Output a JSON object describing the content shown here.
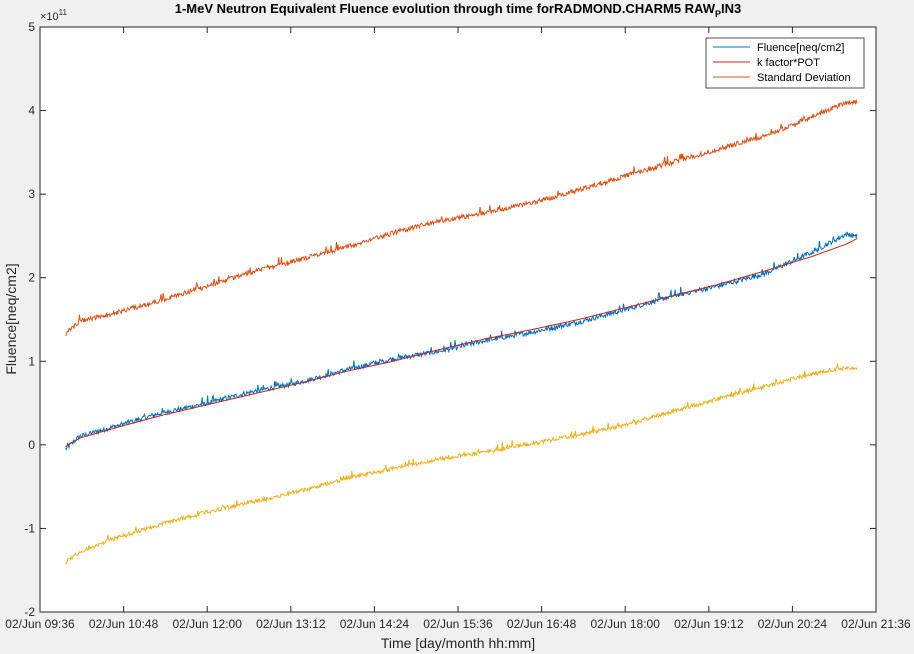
{
  "chart_data": {
    "type": "line",
    "title_main": "1-MeV Neutron Equivalent Fluence evolution through time forRADMOND.CHARM5 RAW",
    "title_sub": "P",
    "title_tail": "IN3",
    "xlabel": "Time [day/month hh:mm]",
    "ylabel": "Fluence[neq/cm2]",
    "y_exponent_base": "×10",
    "y_exponent": "11",
    "xlim_minutes": [
      576,
      1296
    ],
    "x_ticks": [
      {
        "label": "02/Jun 09:36",
        "minutes": 576
      },
      {
        "label": "02/Jun 10:48",
        "minutes": 648
      },
      {
        "label": "02/Jun 12:00",
        "minutes": 720
      },
      {
        "label": "02/Jun 13:12",
        "minutes": 792
      },
      {
        "label": "02/Jun 14:24",
        "minutes": 864
      },
      {
        "label": "02/Jun 15:36",
        "minutes": 936
      },
      {
        "label": "02/Jun 16:48",
        "minutes": 1008
      },
      {
        "label": "02/Jun 18:00",
        "minutes": 1080
      },
      {
        "label": "02/Jun 19:12",
        "minutes": 1152
      },
      {
        "label": "02/Jun 20:24",
        "minutes": 1224
      },
      {
        "label": "02/Jun 21:36",
        "minutes": 1296
      }
    ],
    "ylim": [
      -2,
      5
    ],
    "y_ticks": [
      -2,
      -1,
      0,
      1,
      2,
      3,
      4,
      5
    ],
    "grid": false,
    "legend_position": "top-right",
    "x_minutes_of_day": [
      598,
      610,
      640,
      680,
      720,
      760,
      800,
      840,
      880,
      920,
      960,
      1000,
      1040,
      1080,
      1120,
      1160,
      1200,
      1240,
      1270,
      1280
    ],
    "series": [
      {
        "name": "Fluence[neq/cm2]",
        "color": "#0072bd",
        "values": [
          -0.05,
          0.1,
          0.22,
          0.38,
          0.5,
          0.64,
          0.75,
          0.9,
          1.03,
          1.12,
          1.25,
          1.35,
          1.47,
          1.62,
          1.78,
          1.9,
          2.05,
          2.3,
          2.52,
          2.5
        ]
      },
      {
        "name": "k factor*POT",
        "color": "#d21f1f",
        "values": [
          -0.02,
          0.08,
          0.2,
          0.35,
          0.48,
          0.61,
          0.74,
          0.88,
          1.0,
          1.14,
          1.27,
          1.38,
          1.5,
          1.64,
          1.78,
          1.92,
          2.08,
          2.25,
          2.4,
          2.47
        ]
      },
      {
        "name": "Standard Deviation",
        "color": "#d95319",
        "values": [
          1.33,
          1.48,
          1.58,
          1.73,
          1.9,
          2.08,
          2.22,
          2.37,
          2.54,
          2.68,
          2.78,
          2.9,
          3.05,
          3.22,
          3.38,
          3.54,
          3.7,
          3.92,
          4.1,
          4.1
        ]
      },
      {
        "name": "",
        "color": "#edb120",
        "values": [
          -1.4,
          -1.28,
          -1.12,
          -0.95,
          -0.8,
          -0.68,
          -0.55,
          -0.4,
          -0.28,
          -0.17,
          -0.08,
          0.02,
          0.12,
          0.24,
          0.4,
          0.55,
          0.7,
          0.85,
          0.93,
          0.9
        ]
      }
    ],
    "legend": [
      {
        "label": "Fluence[neq/cm2]",
        "color": "#0072bd"
      },
      {
        "label": "k factor*POT",
        "color": "#d21f1f"
      },
      {
        "label": "Standard Deviation",
        "color": "#d95319"
      }
    ]
  }
}
